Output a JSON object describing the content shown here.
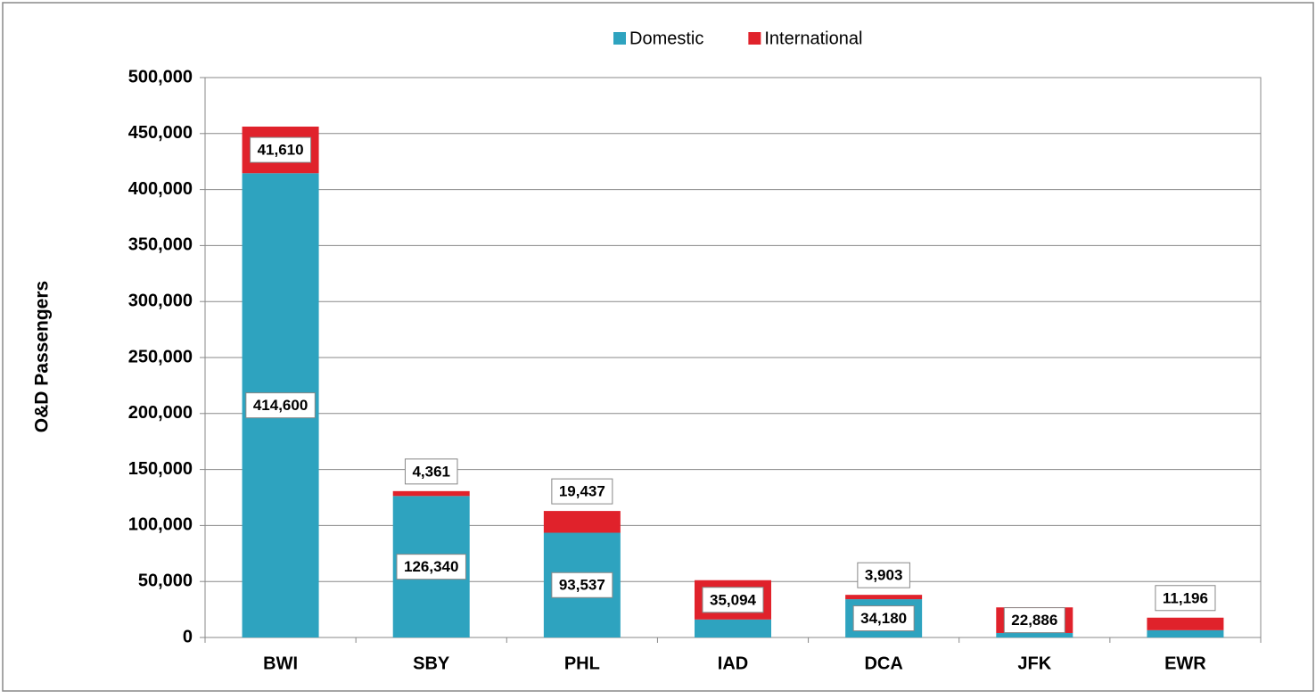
{
  "chart_data": {
    "type": "stacked-bar",
    "y_label": "O&D Passengers",
    "categories": [
      "BWI",
      "SBY",
      "PHL",
      "IAD",
      "DCA",
      "JFK",
      "EWR"
    ],
    "series": [
      {
        "name": "Domestic",
        "color": "#2ea3bf",
        "values": [
          414600,
          126340,
          93537,
          16064,
          34180,
          4000,
          6500
        ],
        "value_labels": [
          "414,600",
          "126,340",
          "93,537",
          "16,064",
          "34,180",
          null,
          null
        ]
      },
      {
        "name": "International",
        "color": "#e0222b",
        "values": [
          41610,
          4361,
          19437,
          35094,
          3903,
          22886,
          11196
        ],
        "value_labels": [
          "41,610",
          "4,361",
          "19,437",
          "35,094",
          "3,903",
          "22,886",
          "11,196"
        ]
      }
    ],
    "ylim": [
      0,
      500000
    ],
    "yticks": [
      0,
      {
        "value": 50000,
        "label": "50,000"
      },
      {
        "value": 100000,
        "label": "100,000"
      },
      {
        "value": 150000,
        "label": "150,000"
      },
      {
        "value": 200000,
        "label": "200,000"
      },
      {
        "value": 250000,
        "label": "250,000"
      },
      {
        "value": 300000,
        "label": "300,000"
      },
      {
        "value": 350000,
        "label": "350,000"
      },
      {
        "value": 400000,
        "label": "400,000"
      },
      {
        "value": 450000,
        "label": "450,000"
      },
      {
        "value": 500000,
        "label": "500,000"
      }
    ],
    "grid": true,
    "legend": "top"
  }
}
